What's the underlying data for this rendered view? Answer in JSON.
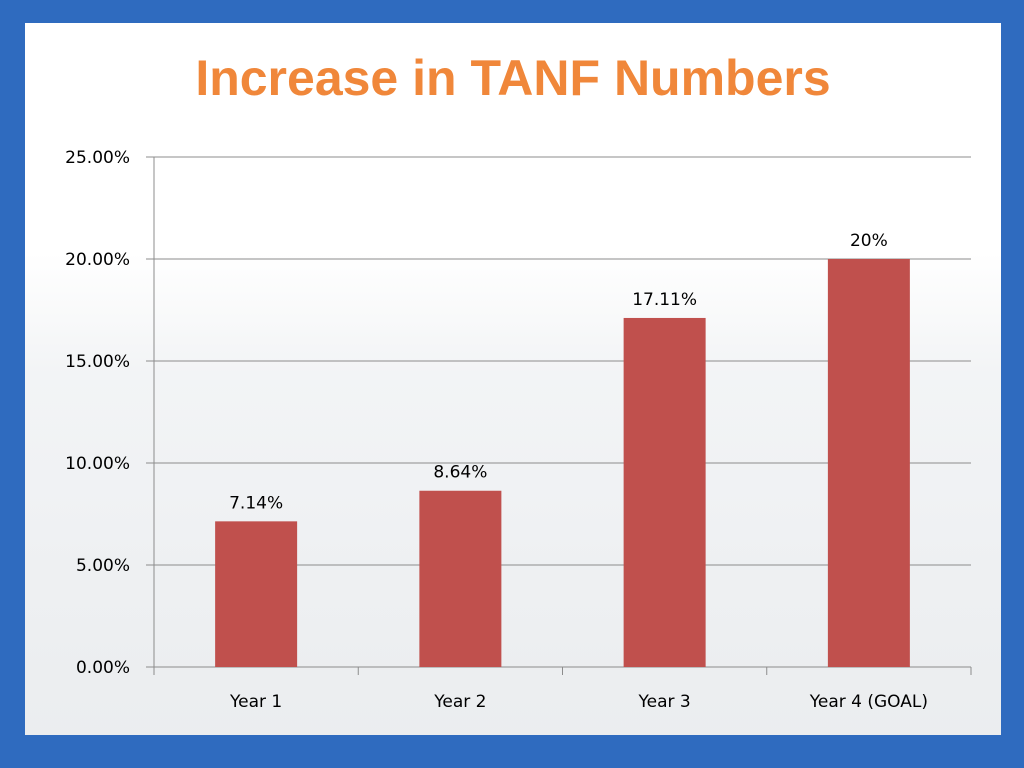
{
  "slide": {
    "title": "Increase in TANF Numbers"
  },
  "colors": {
    "frame": "#2f6bbf",
    "title": "#f0873a",
    "bar": "#c0504d",
    "grid": "#8c8c8c"
  },
  "chart_data": {
    "type": "bar",
    "title": "Increase in TANF Numbers",
    "xlabel": "",
    "ylabel": "",
    "categories": [
      "Year 1",
      "Year 2",
      "Year 3",
      "Year 4 (GOAL)"
    ],
    "values": [
      7.14,
      8.64,
      17.11,
      20
    ],
    "data_labels": [
      "7.14%",
      "8.64%",
      "17.11%",
      "20%"
    ],
    "ylim": [
      0,
      25
    ],
    "yticks": [
      0,
      5,
      10,
      15,
      20,
      25
    ],
    "ytick_labels": [
      "0.00%",
      "5.00%",
      "10.00%",
      "15.00%",
      "20.00%",
      "25.00%"
    ],
    "grid": true,
    "legend": "none"
  }
}
